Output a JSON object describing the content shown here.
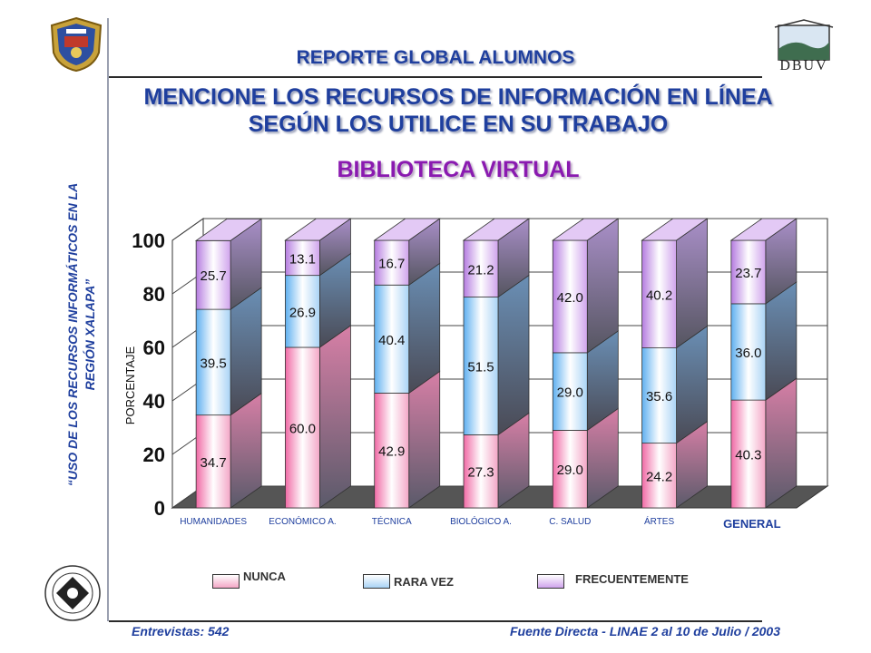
{
  "header": {
    "title": "REPORTE GLOBAL ALUMNOS"
  },
  "question": {
    "line1": "MENCIONE LOS RECURSOS DE INFORMACIÓN EN LÍNEA",
    "line2": "SEGÚN LOS UTILICE EN SU TRABAJO"
  },
  "chart_heading": "BIBLIOTECA VIRTUAL",
  "side_text": {
    "line1": "“USO DE LOS RECURSOS INFORMÁTICOS EN LA",
    "line2": "REGIÓN XALAPA”"
  },
  "logos": {
    "right_text": "DBUV"
  },
  "footer": {
    "left": "Entrevistas: 542",
    "right": "Fuente Directa -  LINAE 2 al 10  de Julio / 2003"
  },
  "legend": [
    {
      "label": "NUNCA",
      "color": "#f3a6c6"
    },
    {
      "label": "RARA VEZ",
      "color": "#a9d3f5"
    },
    {
      "label": "FRECUENTEMENTE",
      "color": "#cfa3ec"
    }
  ],
  "chart_data": {
    "type": "bar",
    "stacked": true,
    "ylabel": "PORCENTAJE",
    "ylim": [
      0,
      100
    ],
    "yticks": [
      0,
      20,
      40,
      60,
      80,
      100
    ],
    "categories": [
      "HUMANIDADES",
      "ECONÓMICO  A.",
      "TÉCNICA",
      "BIOLÓGICO  A.",
      "C. SALUD",
      "ÁRTES",
      "GENERAL"
    ],
    "series": [
      {
        "name": "NUNCA",
        "values": [
          34.7,
          60.0,
          42.9,
          27.3,
          29.0,
          24.2,
          40.3
        ]
      },
      {
        "name": "RARA VEZ",
        "values": [
          39.5,
          26.9,
          40.4,
          51.5,
          29.0,
          35.6,
          36.0
        ]
      },
      {
        "name": "FRECUENTEMENTE",
        "values": [
          25.7,
          13.1,
          16.7,
          21.2,
          42.0,
          40.2,
          23.7
        ]
      }
    ],
    "value_labels": [
      [
        "34.7",
        "60.0",
        "42.9",
        "27.3",
        "29.0",
        "24.2",
        "40.3"
      ],
      [
        "39.5",
        "26.9",
        "40.4",
        "51.5",
        "29.0",
        "35.6",
        "36.0"
      ],
      [
        "25.7",
        "13.1",
        "16.7",
        "21.2",
        "42.0",
        "40.2",
        "23.7"
      ]
    ],
    "grid": true,
    "legend_position": "bottom"
  }
}
